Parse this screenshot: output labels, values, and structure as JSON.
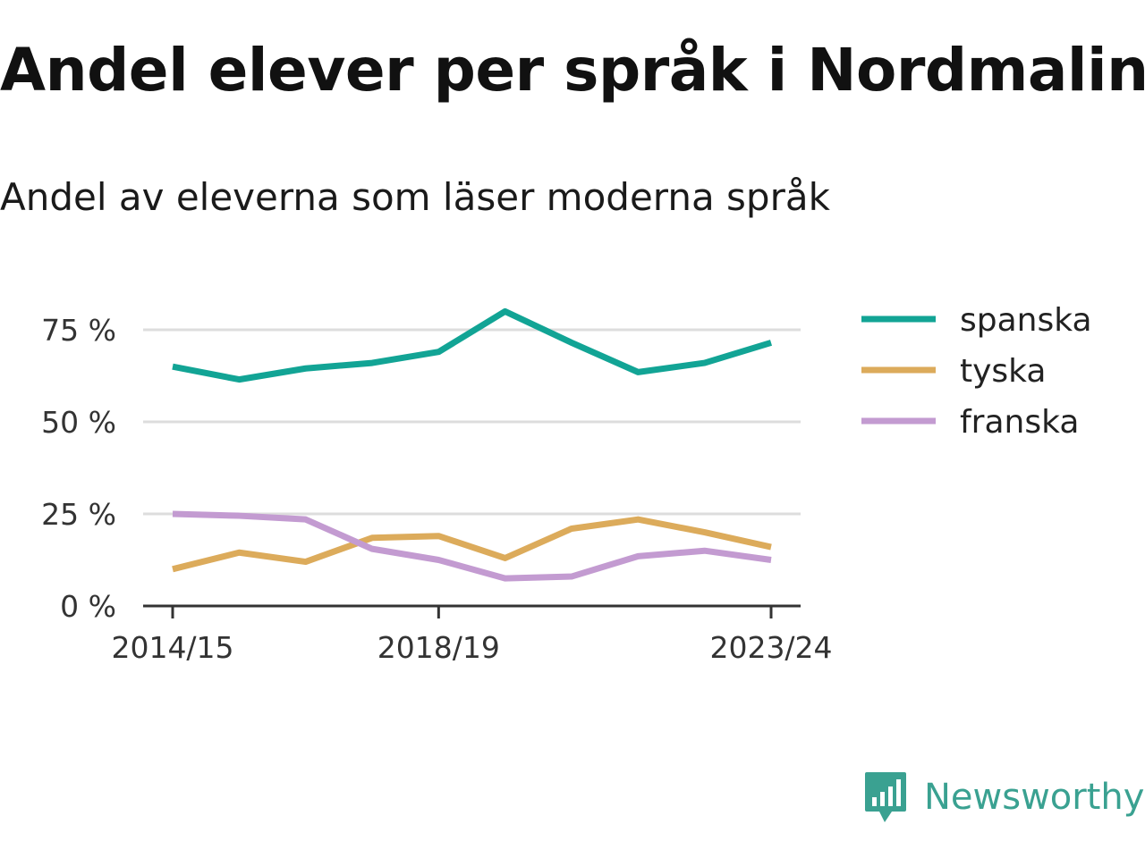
{
  "header": {
    "title": "Andel elever per språk i Nordmaling",
    "subtitle": "Andel av eleverna som läser moderna språk"
  },
  "brand": {
    "name": "Newsworthy",
    "icon": "newsworthy-logo-icon",
    "color": "#3aa191"
  },
  "chart_data": {
    "type": "line",
    "title": "Andel elever per språk i Nordmaling",
    "subtitle": "Andel av eleverna som läser moderna språk",
    "xlabel": "",
    "ylabel": "",
    "x": [
      "2014/15",
      "2015/16",
      "2016/17",
      "2017/18",
      "2018/19",
      "2019/20",
      "2020/21",
      "2021/22",
      "2022/23",
      "2023/24"
    ],
    "x_tick_labels": [
      "2014/15",
      "2018/19",
      "2023/24"
    ],
    "y_ticks": [
      0,
      25,
      50,
      75
    ],
    "y_tick_labels": [
      "0 %",
      "25 %",
      "50 %",
      "75 %"
    ],
    "ylim": [
      0,
      78
    ],
    "grid": true,
    "legend_position": "right",
    "series": [
      {
        "name": "spanska",
        "color": "#12a495",
        "values": [
          65,
          61.5,
          64.5,
          66,
          69,
          80,
          71.5,
          63.5,
          66,
          71.5
        ]
      },
      {
        "name": "tyska",
        "color": "#dcab5b",
        "values": [
          10,
          14.5,
          12,
          18.5,
          19,
          13,
          21,
          23.5,
          20,
          16
        ]
      },
      {
        "name": "franska",
        "color": "#c39bd1",
        "values": [
          25,
          24.5,
          23.5,
          15.5,
          12.5,
          7.5,
          8,
          13.5,
          15,
          12.5
        ]
      }
    ]
  }
}
